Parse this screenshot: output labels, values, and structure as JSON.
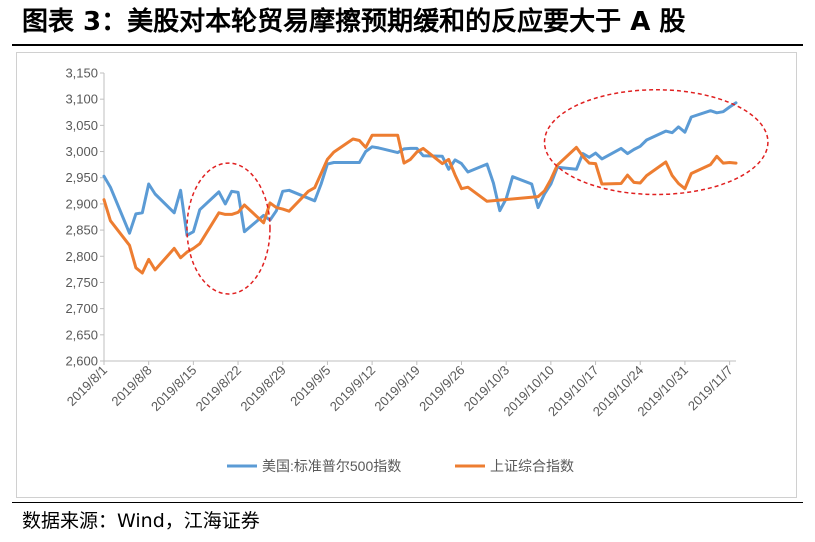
{
  "figure": {
    "title": "图表 3：美股对本轮贸易摩擦预期缓和的反应要大于 A 股",
    "source": "数据来源：Wind，江海证券"
  },
  "chart_data": {
    "type": "line",
    "title": "",
    "xlabel": "",
    "ylabel": "",
    "ylim": [
      2600,
      3150
    ],
    "yticks": [
      2600,
      2650,
      2700,
      2750,
      2800,
      2850,
      2900,
      2950,
      3000,
      3050,
      3100,
      3150
    ],
    "ytick_labels": [
      "2,600",
      "2,650",
      "2,700",
      "2,750",
      "2,800",
      "2,850",
      "2,900",
      "2,950",
      "3,000",
      "3,050",
      "3,100",
      "3,150"
    ],
    "xlim": [
      "2019/8/1",
      "2019/11/8"
    ],
    "xticks": [
      "2019/8/1",
      "2019/8/8",
      "2019/8/15",
      "2019/8/22",
      "2019/8/29",
      "2019/9/5",
      "2019/9/12",
      "2019/9/19",
      "2019/9/26",
      "2019/10/3",
      "2019/10/10",
      "2019/10/17",
      "2019/10/24",
      "2019/10/31",
      "2019/11/7"
    ],
    "grid": false,
    "legend_position": "bottom",
    "annotations": [
      "red dashed ellipse around 2019/8/15–2019/8/22",
      "red dashed ellipse around 2019/10/14–2019/11/8"
    ],
    "series": [
      {
        "name": "美国:标准普尔500指数",
        "color": "#5b9bd5",
        "points": [
          [
            "2019/8/1",
            2953
          ],
          [
            "2019/8/2",
            2932
          ],
          [
            "2019/8/5",
            2844
          ],
          [
            "2019/8/6",
            2881
          ],
          [
            "2019/8/7",
            2883
          ],
          [
            "2019/8/8",
            2938
          ],
          [
            "2019/8/9",
            2919
          ],
          [
            "2019/8/12",
            2883
          ],
          [
            "2019/8/13",
            2926
          ],
          [
            "2019/8/14",
            2840
          ],
          [
            "2019/8/15",
            2847
          ],
          [
            "2019/8/16",
            2889
          ],
          [
            "2019/8/19",
            2923
          ],
          [
            "2019/8/20",
            2900
          ],
          [
            "2019/8/21",
            2924
          ],
          [
            "2019/8/22",
            2922
          ],
          [
            "2019/8/23",
            2847
          ],
          [
            "2019/8/26",
            2878
          ],
          [
            "2019/8/27",
            2869
          ],
          [
            "2019/8/28",
            2887
          ],
          [
            "2019/8/29",
            2924
          ],
          [
            "2019/8/30",
            2926
          ],
          [
            "2019/9/3",
            2906
          ],
          [
            "2019/9/4",
            2938
          ],
          [
            "2019/9/5",
            2976
          ],
          [
            "2019/9/6",
            2979
          ],
          [
            "2019/9/9",
            2979
          ],
          [
            "2019/9/10",
            2979
          ],
          [
            "2019/9/11",
            3000
          ],
          [
            "2019/9/12",
            3009
          ],
          [
            "2019/9/13",
            3007
          ],
          [
            "2019/9/16",
            2998
          ],
          [
            "2019/9/17",
            3005
          ],
          [
            "2019/9/18",
            3006
          ],
          [
            "2019/9/19",
            3006
          ],
          [
            "2019/9/20",
            2992
          ],
          [
            "2019/9/23",
            2991
          ],
          [
            "2019/9/24",
            2966
          ],
          [
            "2019/9/25",
            2984
          ],
          [
            "2019/9/26",
            2977
          ],
          [
            "2019/9/27",
            2961
          ],
          [
            "2019/9/30",
            2976
          ],
          [
            "2019/10/1",
            2940
          ],
          [
            "2019/10/2",
            2887
          ],
          [
            "2019/10/3",
            2910
          ],
          [
            "2019/10/4",
            2952
          ],
          [
            "2019/10/7",
            2938
          ],
          [
            "2019/10/8",
            2893
          ],
          [
            "2019/10/9",
            2919
          ],
          [
            "2019/10/10",
            2938
          ],
          [
            "2019/10/11",
            2970
          ],
          [
            "2019/10/14",
            2966
          ],
          [
            "2019/10/15",
            2996
          ],
          [
            "2019/10/16",
            2989
          ],
          [
            "2019/10/17",
            2997
          ],
          [
            "2019/10/18",
            2986
          ],
          [
            "2019/10/21",
            3006
          ],
          [
            "2019/10/22",
            2996
          ],
          [
            "2019/10/23",
            3004
          ],
          [
            "2019/10/24",
            3010
          ],
          [
            "2019/10/25",
            3022
          ],
          [
            "2019/10/28",
            3039
          ],
          [
            "2019/10/29",
            3036
          ],
          [
            "2019/10/30",
            3047
          ],
          [
            "2019/10/31",
            3037
          ],
          [
            "2019/11/1",
            3066
          ],
          [
            "2019/11/4",
            3078
          ],
          [
            "2019/11/5",
            3074
          ],
          [
            "2019/11/6",
            3076
          ],
          [
            "2019/11/7",
            3085
          ],
          [
            "2019/11/8",
            3093
          ]
        ]
      },
      {
        "name": "上证综合指数",
        "color": "#ed7d31",
        "points": [
          [
            "2019/8/1",
            2908
          ],
          [
            "2019/8/2",
            2868
          ],
          [
            "2019/8/5",
            2821
          ],
          [
            "2019/8/6",
            2778
          ],
          [
            "2019/8/7",
            2768
          ],
          [
            "2019/8/8",
            2794
          ],
          [
            "2019/8/9",
            2774
          ],
          [
            "2019/8/12",
            2815
          ],
          [
            "2019/8/13",
            2797
          ],
          [
            "2019/8/14",
            2808
          ],
          [
            "2019/8/15",
            2815
          ],
          [
            "2019/8/16",
            2824
          ],
          [
            "2019/8/19",
            2883
          ],
          [
            "2019/8/20",
            2880
          ],
          [
            "2019/8/21",
            2880
          ],
          [
            "2019/8/22",
            2884
          ],
          [
            "2019/8/23",
            2898
          ],
          [
            "2019/8/26",
            2864
          ],
          [
            "2019/8/27",
            2902
          ],
          [
            "2019/8/28",
            2893
          ],
          [
            "2019/8/29",
            2890
          ],
          [
            "2019/8/30",
            2886
          ],
          [
            "2019/9/2",
            2924
          ],
          [
            "2019/9/3",
            2931
          ],
          [
            "2019/9/4",
            2958
          ],
          [
            "2019/9/5",
            2985
          ],
          [
            "2019/9/6",
            2999
          ],
          [
            "2019/9/9",
            3024
          ],
          [
            "2019/9/10",
            3021
          ],
          [
            "2019/9/11",
            3008
          ],
          [
            "2019/9/12",
            3031
          ],
          [
            "2019/9/16",
            3031
          ],
          [
            "2019/9/17",
            2978
          ],
          [
            "2019/9/18",
            2985
          ],
          [
            "2019/9/19",
            2999
          ],
          [
            "2019/9/20",
            3006
          ],
          [
            "2019/9/23",
            2977
          ],
          [
            "2019/9/24",
            2985
          ],
          [
            "2019/9/25",
            2955
          ],
          [
            "2019/9/26",
            2929
          ],
          [
            "2019/9/27",
            2932
          ],
          [
            "2019/9/30",
            2905
          ],
          [
            "2019/10/8",
            2914
          ],
          [
            "2019/10/9",
            2925
          ],
          [
            "2019/10/10",
            2947
          ],
          [
            "2019/10/11",
            2974
          ],
          [
            "2019/10/14",
            3008
          ],
          [
            "2019/10/15",
            2991
          ],
          [
            "2019/10/16",
            2978
          ],
          [
            "2019/10/17",
            2977
          ],
          [
            "2019/10/18",
            2938
          ],
          [
            "2019/10/21",
            2939
          ],
          [
            "2019/10/22",
            2955
          ],
          [
            "2019/10/23",
            2941
          ],
          [
            "2019/10/24",
            2940
          ],
          [
            "2019/10/25",
            2954
          ],
          [
            "2019/10/28",
            2980
          ],
          [
            "2019/10/29",
            2954
          ],
          [
            "2019/10/30",
            2939
          ],
          [
            "2019/10/31",
            2929
          ],
          [
            "2019/11/1",
            2958
          ],
          [
            "2019/11/4",
            2975
          ],
          [
            "2019/11/5",
            2991
          ],
          [
            "2019/11/6",
            2978
          ],
          [
            "2019/11/7",
            2979
          ],
          [
            "2019/11/8",
            2978
          ]
        ]
      }
    ]
  }
}
